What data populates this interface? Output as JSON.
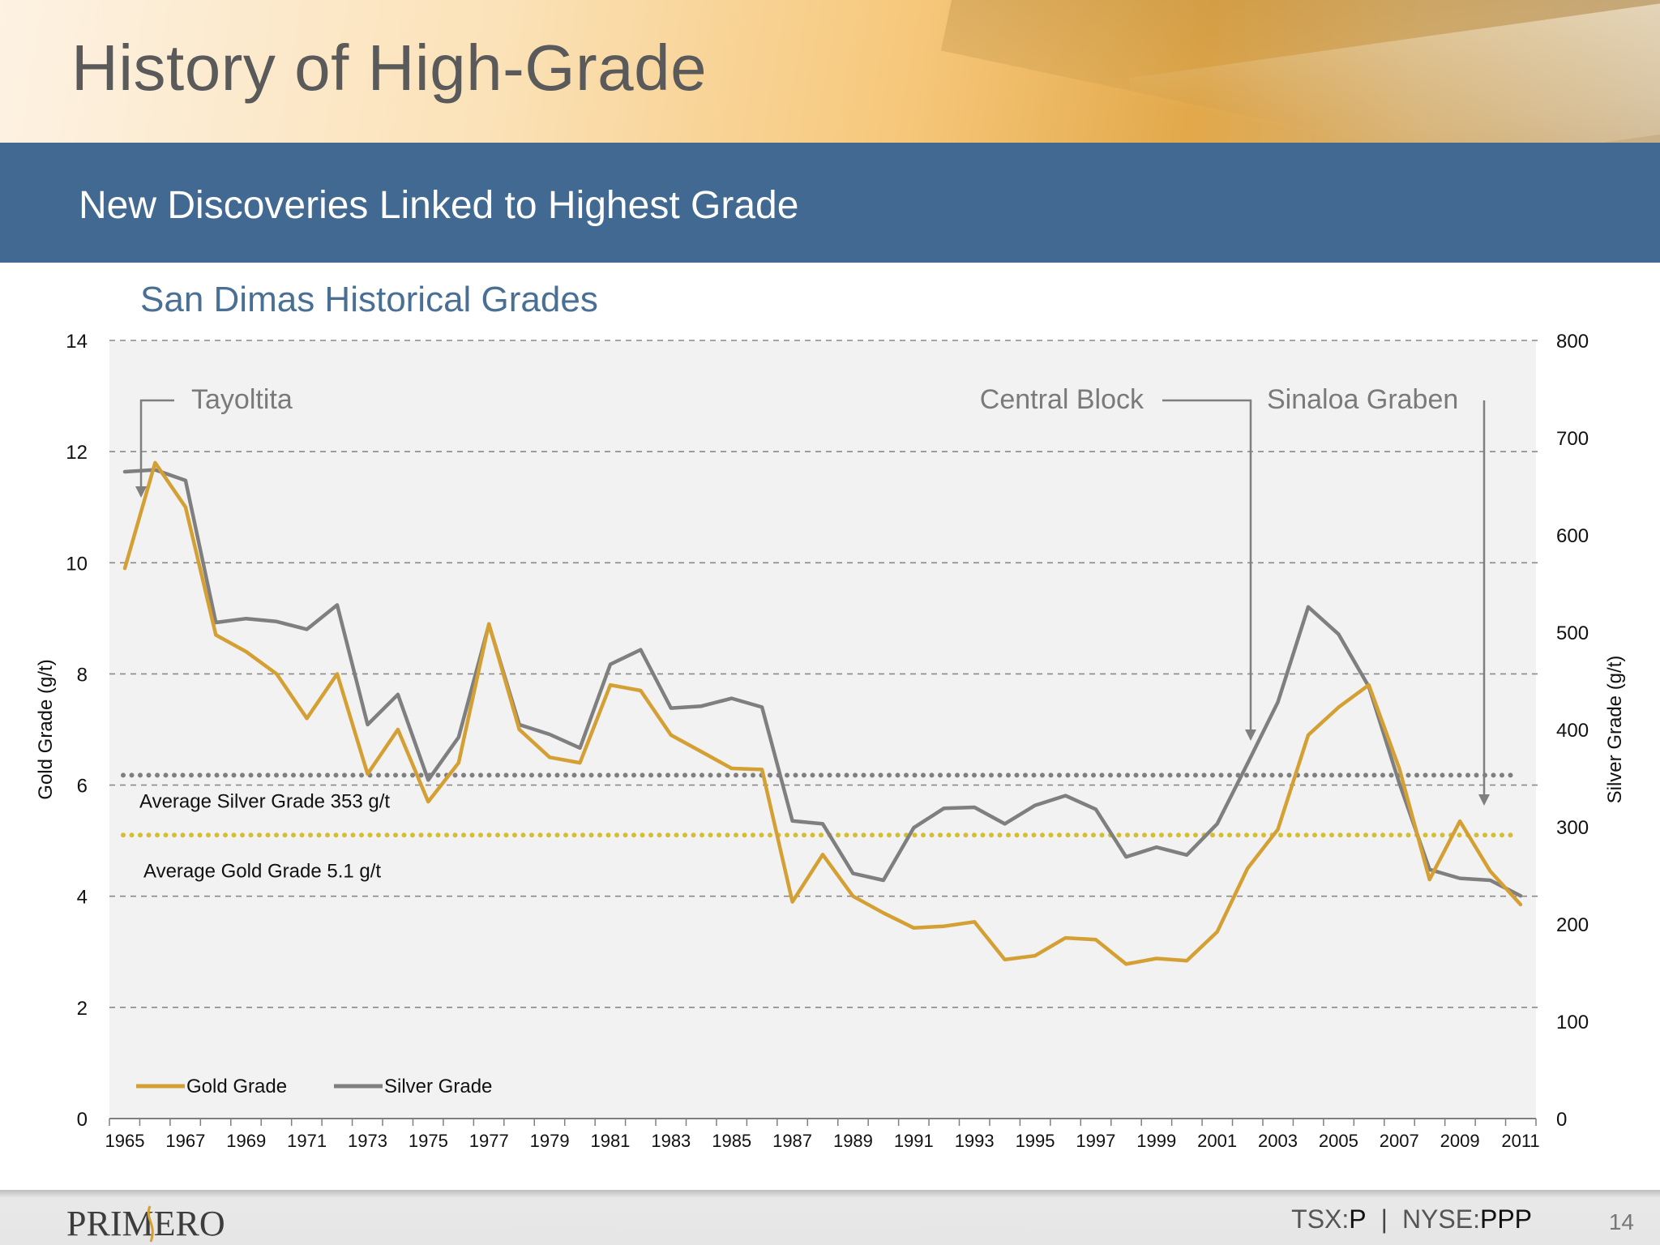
{
  "page": {
    "title": "History of High-Grade",
    "banner": "New Discoveries Linked to Highest Grade",
    "page_number": "14"
  },
  "footer": {
    "logo_text": "PRIMERO",
    "ticker1_prefix": "TSX:",
    "ticker1_symbol": "P",
    "separator": "|",
    "ticker2_prefix": "NYSE:",
    "ticker2_symbol": "PPP"
  },
  "colors": {
    "gold": "#d4a033",
    "silver": "#7f7f7f",
    "banner": "#416992",
    "title_blue": "#4a6f94",
    "plot_bg": "#f2f2f2"
  },
  "chart_data": {
    "type": "line",
    "title": "San Dimas Historical Grades",
    "ylabel": "Gold Grade (g/t)",
    "y2label": "Silver Grade (g/t)",
    "ylim": [
      0,
      14
    ],
    "y2lim": [
      0,
      800
    ],
    "yticks": [
      "0",
      "2",
      "4",
      "6",
      "8",
      "10",
      "12",
      "14"
    ],
    "y2ticks": [
      "0",
      "100",
      "200",
      "300",
      "400",
      "500",
      "600",
      "700",
      "800"
    ],
    "x": [
      1965,
      1966,
      1967,
      1968,
      1969,
      1970,
      1971,
      1972,
      1973,
      1974,
      1975,
      1976,
      1977,
      1978,
      1979,
      1980,
      1981,
      1982,
      1983,
      1984,
      1985,
      1986,
      1987,
      1988,
      1989,
      1990,
      1991,
      1992,
      1993,
      1994,
      1995,
      1996,
      1997,
      1998,
      1999,
      2000,
      2001,
      2002,
      2003,
      2004,
      2005,
      2006,
      2007,
      2008,
      2009,
      2010,
      2011
    ],
    "xtick_labels": [
      "1965",
      "1967",
      "1969",
      "1971",
      "1973",
      "1975",
      "1977",
      "1979",
      "1981",
      "1983",
      "1985",
      "1987",
      "1989",
      "1991",
      "1993",
      "1995",
      "1997",
      "1999",
      "2001",
      "2003",
      "2005",
      "2007",
      "2009",
      "2011"
    ],
    "grid": true,
    "legend_position": "bottom-left",
    "series": [
      {
        "name": "Gold Grade",
        "axis": "left",
        "color": "#d4a033",
        "values": [
          9.9,
          11.8,
          11.0,
          8.7,
          8.4,
          8.0,
          7.2,
          8.0,
          6.2,
          7.0,
          5.7,
          6.4,
          8.9,
          7.0,
          6.5,
          6.4,
          7.8,
          7.7,
          6.9,
          6.6,
          6.3,
          6.28,
          3.9,
          4.75,
          4.0,
          3.7,
          3.43,
          3.46,
          3.54,
          2.86,
          2.93,
          3.25,
          3.22,
          2.78,
          2.88,
          2.84,
          3.36,
          4.5,
          5.2,
          6.9,
          7.4,
          7.8,
          6.3,
          4.3,
          5.35,
          4.45,
          3.85
        ]
      },
      {
        "name": "Silver Grade",
        "axis": "right",
        "color": "#7f7f7f",
        "values": [
          665,
          667,
          656,
          510,
          514,
          511,
          503,
          528,
          405,
          436,
          348,
          392,
          508,
          405,
          395,
          381,
          467,
          482,
          422,
          424,
          432,
          423,
          306,
          303,
          252,
          245,
          299,
          319,
          320,
          303,
          322,
          332,
          318,
          269,
          279,
          271,
          303,
          365,
          428,
          526,
          498,
          444,
          345,
          256,
          247,
          245,
          229
        ]
      }
    ],
    "reference_lines": [
      {
        "label": "Average Silver Grade 353 g/t",
        "axis": "right",
        "value": 353,
        "color": "#7f7f7f"
      },
      {
        "label": "Average Gold Grade 5.1 g/t",
        "axis": "left",
        "value": 5.1,
        "color": "#d4bf33"
      }
    ],
    "annotations": [
      {
        "label": "Tayoltita",
        "year": 1965
      },
      {
        "label": "Central Block",
        "year": 2002
      },
      {
        "label": "Sinaloa Graben",
        "year": 2010
      }
    ]
  }
}
